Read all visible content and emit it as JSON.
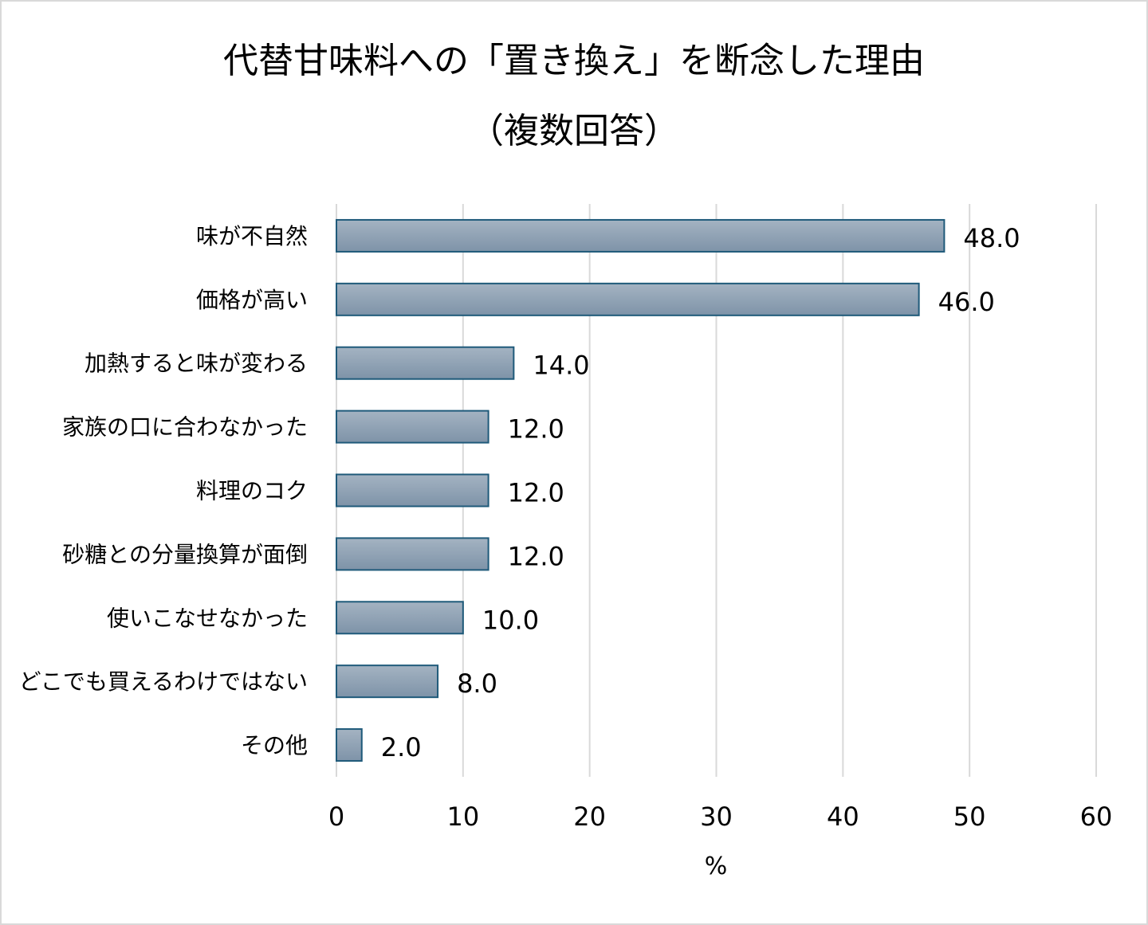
{
  "chart_data": {
    "type": "bar",
    "orientation": "horizontal",
    "title": "代替甘味料への「置き換え」を断念した理由",
    "subtitle": "（複数回答）",
    "categories": [
      "味が不自然",
      "価格が高い",
      "加熱すると味が変わる",
      "家族の口に合わなかった",
      "料理のコク",
      "砂糖との分量換算が面倒",
      "使いこなせなかった",
      "どこでも買えるわけではない",
      "その他"
    ],
    "values": [
      48.0,
      46.0,
      14.0,
      12.0,
      12.0,
      12.0,
      10.0,
      8.0,
      2.0
    ],
    "value_labels": [
      "48.0",
      "46.0",
      "14.0",
      "12.0",
      "12.0",
      "12.0",
      "10.0",
      "8.0",
      "2.0"
    ],
    "xlabel": "%",
    "ylabel": "",
    "xlim": [
      0,
      60
    ],
    "xticks": [
      "0",
      "10",
      "20",
      "30",
      "40",
      "50",
      "60"
    ],
    "grid": true,
    "legend": "none",
    "colors": {
      "bar_fill_top": "#a4b3c2",
      "bar_fill_bottom": "#7e93a8",
      "bar_stroke": "#1f5a7a",
      "grid": "#d9d9d9"
    }
  }
}
